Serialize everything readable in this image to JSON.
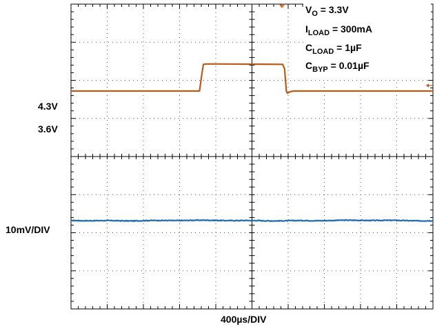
{
  "chart_data": [
    {
      "type": "line",
      "title": "",
      "xlabel": "400µs/DIV",
      "ylabel": "",
      "divisions": {
        "x": 10,
        "y": 8
      },
      "x_unit_per_div": "400µs",
      "grid": true,
      "series": [
        {
          "name": "",
          "color": "#b85a1a",
          "points_div": [
            [
              0,
              5.72
            ],
            [
              3.55,
              5.72
            ],
            [
              3.62,
              6.2
            ],
            [
              3.66,
              6.42
            ],
            [
              3.75,
              6.43
            ],
            [
              5.85,
              6.42
            ],
            [
              5.9,
              6.3
            ],
            [
              5.95,
              5.72
            ],
            [
              5.98,
              5.66
            ],
            [
              6.05,
              5.7
            ],
            [
              6.15,
              5.72
            ],
            [
              10,
              5.72
            ]
          ]
        },
        {
          "name": "",
          "color": "#1f6cb5",
          "points_div": [
            [
              0,
              2.32
            ],
            [
              10,
              2.32
            ]
          ],
          "noise_div": 0.02
        }
      ],
      "level_labels": [
        {
          "text": "4.3V",
          "y_div": 6.43
        },
        {
          "text": "3.6V",
          "y_div": 5.72
        },
        {
          "text": "10mV/DIV",
          "y_div": 2.32
        }
      ],
      "annotations": {
        "vo": {
          "main": "V",
          "sub": "O",
          "rest": " = 3.3V"
        },
        "iload": {
          "main": "I",
          "sub": "LOAD",
          "rest": " = 300mA"
        },
        "cload": {
          "main": "C",
          "sub": "LOAD",
          "rest": " = 1µF"
        },
        "cbyp": {
          "main": "C",
          "sub": "BYP",
          "rest": " = 0.01µF"
        }
      }
    }
  ]
}
